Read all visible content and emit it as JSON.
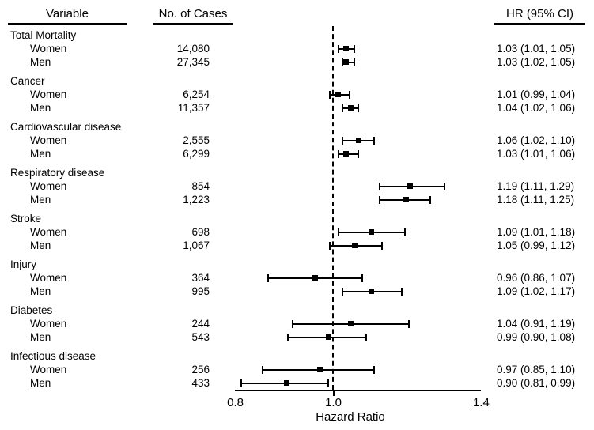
{
  "figure": {
    "headers": {
      "variable": "Variable",
      "cases": "No. of Cases",
      "hr": "HR (95% CI)"
    }
  },
  "chart_data": {
    "type": "forest",
    "title": "",
    "xlabel": "Hazard Ratio",
    "legend": "none",
    "marker": "filled-square",
    "colors": {
      "ink": "#000000",
      "background": "#ffffff"
    },
    "axis": {
      "scale": "log",
      "min": 0.8,
      "max": 1.4,
      "reference_line": 1.0,
      "ticks": [
        {
          "value": 0.8,
          "label": "0.8",
          "tick_mark": false
        },
        {
          "value": 1.0,
          "label": "1.0",
          "tick_mark": true
        },
        {
          "value": 1.4,
          "label": "1.4",
          "tick_mark": false
        }
      ]
    },
    "groups": [
      {
        "label": "Total Mortality",
        "rows": [
          {
            "label": "Women",
            "cases": "14,080",
            "hr": 1.03,
            "lo": 1.01,
            "hi": 1.05,
            "hr_text": "1.03 (1.01, 1.05)"
          },
          {
            "label": "Men",
            "cases": "27,345",
            "hr": 1.03,
            "lo": 1.02,
            "hi": 1.05,
            "hr_text": "1.03 (1.02, 1.05)"
          }
        ]
      },
      {
        "label": "Cancer",
        "rows": [
          {
            "label": "Women",
            "cases": "6,254",
            "hr": 1.01,
            "lo": 0.99,
            "hi": 1.04,
            "hr_text": "1.01 (0.99, 1.04)"
          },
          {
            "label": "Men",
            "cases": "11,357",
            "hr": 1.04,
            "lo": 1.02,
            "hi": 1.06,
            "hr_text": "1.04 (1.02, 1.06)"
          }
        ]
      },
      {
        "label": "Cardiovascular disease",
        "rows": [
          {
            "label": "Women",
            "cases": "2,555",
            "hr": 1.06,
            "lo": 1.02,
            "hi": 1.1,
            "hr_text": "1.06 (1.02, 1.10)"
          },
          {
            "label": "Men",
            "cases": "6,299",
            "hr": 1.03,
            "lo": 1.01,
            "hi": 1.06,
            "hr_text": "1.03 (1.01, 1.06)"
          }
        ]
      },
      {
        "label": "Respiratory disease",
        "rows": [
          {
            "label": "Women",
            "cases": "854",
            "hr": 1.19,
            "lo": 1.11,
            "hi": 1.29,
            "hr_text": "1.19 (1.11, 1.29)"
          },
          {
            "label": "Men",
            "cases": "1,223",
            "hr": 1.18,
            "lo": 1.11,
            "hi": 1.25,
            "hr_text": "1.18 (1.11, 1.25)"
          }
        ]
      },
      {
        "label": "Stroke",
        "rows": [
          {
            "label": "Women",
            "cases": "698",
            "hr": 1.09,
            "lo": 1.01,
            "hi": 1.18,
            "hr_text": "1.09 (1.01, 1.18)"
          },
          {
            "label": "Men",
            "cases": "1,067",
            "hr": 1.05,
            "lo": 0.99,
            "hi": 1.12,
            "hr_text": "1.05 (0.99, 1.12)"
          }
        ]
      },
      {
        "label": "Injury",
        "rows": [
          {
            "label": "Women",
            "cases": "364",
            "hr": 0.96,
            "lo": 0.86,
            "hi": 1.07,
            "hr_text": "0.96 (0.86, 1.07)"
          },
          {
            "label": "Men",
            "cases": "995",
            "hr": 1.09,
            "lo": 1.02,
            "hi": 1.17,
            "hr_text": "1.09 (1.02, 1.17)"
          }
        ]
      },
      {
        "label": "Diabetes",
        "rows": [
          {
            "label": "Women",
            "cases": "244",
            "hr": 1.04,
            "lo": 0.91,
            "hi": 1.19,
            "hr_text": "1.04 (0.91, 1.19)"
          },
          {
            "label": "Men",
            "cases": "543",
            "hr": 0.99,
            "lo": 0.9,
            "hi": 1.08,
            "hr_text": "0.99 (0.90, 1.08)"
          }
        ]
      },
      {
        "label": "Infectious disease",
        "rows": [
          {
            "label": "Women",
            "cases": "256",
            "hr": 0.97,
            "lo": 0.85,
            "hi": 1.1,
            "hr_text": "0.97 (0.85, 1.10)"
          },
          {
            "label": "Men",
            "cases": "433",
            "hr": 0.9,
            "lo": 0.81,
            "hi": 0.99,
            "hr_text": "0.90 (0.81, 0.99)"
          }
        ]
      }
    ]
  }
}
